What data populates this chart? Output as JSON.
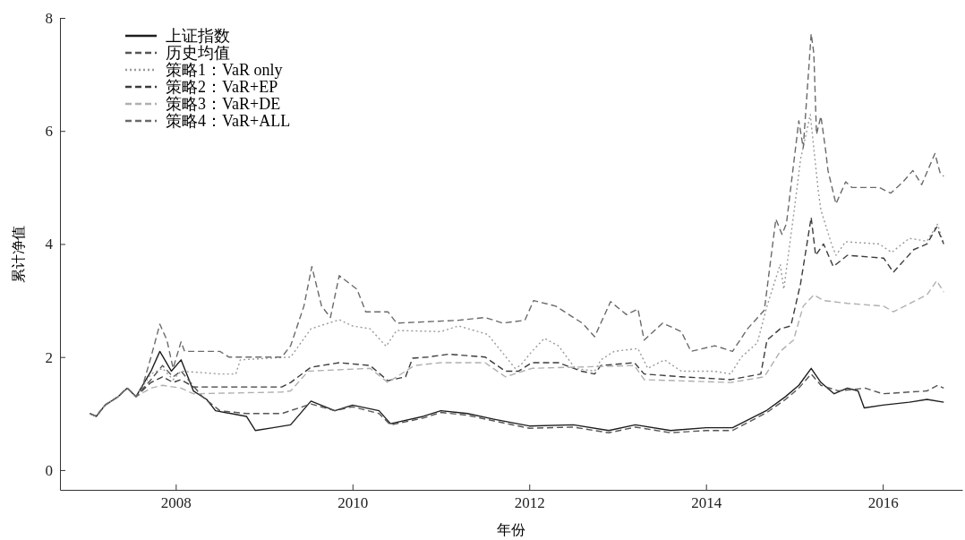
{
  "chart_data": {
    "type": "line",
    "xlabel": "年份",
    "ylabel": "累计净值",
    "xlim": [
      2006.69,
      2016.9
    ],
    "ylim": [
      -0.35,
      8
    ],
    "xticks": [
      2008,
      2010,
      2012,
      2014,
      2016
    ],
    "yticks": [
      0,
      2,
      4,
      6,
      8
    ],
    "grid": false,
    "legend": "top left",
    "series": [
      {
        "name": "上证指数",
        "color": "#1e1e1e",
        "line_style": "solid",
        "x": [
          2007.03,
          2007.1,
          2007.2,
          2007.35,
          2007.45,
          2007.55,
          2007.72,
          2007.82,
          2007.95,
          2008.06,
          2008.2,
          2008.35,
          2008.45,
          2008.8,
          2008.9,
          2009.1,
          2009.3,
          2009.53,
          2009.8,
          2010.0,
          2010.3,
          2010.43,
          2010.8,
          2011.0,
          2011.3,
          2011.6,
          2012.0,
          2012.5,
          2012.9,
          2013.2,
          2013.6,
          2014.0,
          2014.3,
          2014.69,
          2014.9,
          2015.05,
          2015.19,
          2015.3,
          2015.45,
          2015.6,
          2015.72,
          2015.79,
          2016.0,
          2016.3,
          2016.5,
          2016.69
        ],
        "values": [
          1.0,
          0.95,
          1.15,
          1.3,
          1.45,
          1.3,
          1.75,
          2.1,
          1.75,
          1.95,
          1.4,
          1.25,
          1.05,
          0.95,
          0.7,
          0.75,
          0.8,
          1.22,
          1.05,
          1.15,
          1.05,
          0.82,
          0.95,
          1.05,
          1.0,
          0.9,
          0.78,
          0.8,
          0.7,
          0.8,
          0.7,
          0.75,
          0.75,
          1.06,
          1.3,
          1.5,
          1.8,
          1.55,
          1.35,
          1.45,
          1.4,
          1.1,
          1.15,
          1.2,
          1.25,
          1.2
        ]
      },
      {
        "name": "历史均值",
        "color": "#555555",
        "line_style": "dashed",
        "x": [
          2007.03,
          2007.1,
          2007.2,
          2007.35,
          2007.45,
          2007.55,
          2007.72,
          2007.85,
          2007.97,
          2008.06,
          2008.3,
          2008.5,
          2008.8,
          2009.2,
          2009.53,
          2009.8,
          2010.0,
          2010.3,
          2010.43,
          2010.8,
          2011.0,
          2011.3,
          2011.6,
          2012.0,
          2012.5,
          2012.9,
          2013.2,
          2013.6,
          2014.0,
          2014.3,
          2014.69,
          2014.9,
          2015.05,
          2015.19,
          2015.3,
          2015.5,
          2015.8,
          2016.0,
          2016.5,
          2016.62,
          2016.69
        ],
        "values": [
          1.0,
          0.95,
          1.15,
          1.3,
          1.45,
          1.3,
          1.6,
          1.85,
          1.65,
          1.75,
          1.3,
          1.05,
          1.0,
          1.0,
          1.17,
          1.05,
          1.12,
          1.0,
          0.8,
          0.92,
          1.02,
          0.97,
          0.87,
          0.74,
          0.76,
          0.66,
          0.76,
          0.66,
          0.7,
          0.7,
          1.02,
          1.25,
          1.45,
          1.7,
          1.5,
          1.4,
          1.45,
          1.35,
          1.4,
          1.5,
          1.45
        ]
      },
      {
        "name": "策略1：VaR only",
        "color": "#9a9a9a",
        "line_style": "dotted",
        "x": [
          2007.03,
          2007.1,
          2007.2,
          2007.35,
          2007.45,
          2007.55,
          2007.72,
          2007.85,
          2007.97,
          2008.06,
          2008.5,
          2008.68,
          2008.73,
          2009.3,
          2009.53,
          2009.85,
          2010.0,
          2010.2,
          2010.38,
          2010.5,
          2011.0,
          2011.2,
          2011.53,
          2011.84,
          2011.9,
          2012.03,
          2012.17,
          2012.33,
          2012.52,
          2012.74,
          2012.81,
          2012.96,
          2013.23,
          2013.34,
          2013.53,
          2013.72,
          2014.09,
          2014.28,
          2014.4,
          2014.58,
          2014.69,
          2014.84,
          2014.88,
          2014.99,
          2015.07,
          2015.18,
          2015.27,
          2015.3,
          2015.42,
          2015.47,
          2015.58,
          2015.96,
          2016.1,
          2016.3,
          2016.5,
          2016.62,
          2016.69
        ],
        "values": [
          1.0,
          0.95,
          1.15,
          1.3,
          1.45,
          1.3,
          1.7,
          1.8,
          1.6,
          1.75,
          1.7,
          1.7,
          1.95,
          2.0,
          2.5,
          2.66,
          2.55,
          2.5,
          2.19,
          2.47,
          2.45,
          2.55,
          2.4,
          1.8,
          1.85,
          2.1,
          2.33,
          2.2,
          1.8,
          1.75,
          1.95,
          2.1,
          2.15,
          1.8,
          1.95,
          1.75,
          1.75,
          1.7,
          2.0,
          2.25,
          2.9,
          3.64,
          3.2,
          4.5,
          5.5,
          6.29,
          4.94,
          4.6,
          4.0,
          3.8,
          4.04,
          4.0,
          3.85,
          4.1,
          4.05,
          4.35,
          4.0
        ]
      },
      {
        "name": "策略2：VaR+EP",
        "color": "#3c3c3c",
        "line_style": "dashed",
        "x": [
          2007.03,
          2007.1,
          2007.2,
          2007.35,
          2007.45,
          2007.55,
          2007.72,
          2007.85,
          2007.97,
          2008.06,
          2008.2,
          2009.2,
          2009.3,
          2009.53,
          2009.85,
          2010.2,
          2010.4,
          2010.6,
          2010.68,
          2010.85,
          2011.09,
          2011.5,
          2011.73,
          2011.88,
          2012.03,
          2012.33,
          2012.59,
          2012.74,
          2012.81,
          2013.19,
          2013.3,
          2013.72,
          2014.28,
          2014.62,
          2014.69,
          2014.84,
          2014.96,
          2015.07,
          2015.19,
          2015.24,
          2015.33,
          2015.44,
          2015.6,
          2016.01,
          2016.12,
          2016.35,
          2016.5,
          2016.61,
          2016.69
        ],
        "values": [
          1.0,
          0.95,
          1.15,
          1.3,
          1.45,
          1.3,
          1.55,
          1.65,
          1.55,
          1.6,
          1.47,
          1.47,
          1.55,
          1.82,
          1.9,
          1.85,
          1.58,
          1.65,
          1.98,
          2.0,
          2.05,
          2.0,
          1.75,
          1.75,
          1.9,
          1.9,
          1.75,
          1.7,
          1.85,
          1.9,
          1.7,
          1.65,
          1.6,
          1.7,
          2.3,
          2.5,
          2.55,
          3.3,
          4.47,
          3.8,
          4.0,
          3.6,
          3.8,
          3.75,
          3.5,
          3.9,
          4.0,
          4.3,
          4.0
        ]
      },
      {
        "name": "策略3：VaR+DE",
        "color": "#b0b0b0",
        "line_style": "dashed",
        "x": [
          2007.03,
          2007.1,
          2007.2,
          2007.35,
          2007.45,
          2007.55,
          2007.72,
          2007.85,
          2008.06,
          2008.2,
          2009.2,
          2009.3,
          2009.5,
          2010.2,
          2010.4,
          2010.7,
          2011.0,
          2011.5,
          2011.73,
          2012.03,
          2013.19,
          2013.3,
          2014.28,
          2014.66,
          2014.84,
          2014.99,
          2015.1,
          2015.22,
          2015.33,
          2015.6,
          2016.01,
          2016.12,
          2016.5,
          2016.61,
          2016.69
        ],
        "values": [
          1.0,
          0.95,
          1.15,
          1.3,
          1.45,
          1.3,
          1.45,
          1.5,
          1.45,
          1.35,
          1.38,
          1.4,
          1.75,
          1.8,
          1.55,
          1.85,
          1.9,
          1.9,
          1.65,
          1.8,
          1.85,
          1.6,
          1.55,
          1.65,
          2.1,
          2.3,
          2.9,
          3.1,
          3.0,
          2.95,
          2.9,
          2.8,
          3.1,
          3.35,
          3.15
        ]
      },
      {
        "name": "策略4：VaR+ALL",
        "color": "#6a6a6a",
        "line_style": "dashed",
        "x": [
          2007.03,
          2007.1,
          2007.2,
          2007.35,
          2007.45,
          2007.55,
          2007.6,
          2007.72,
          2007.82,
          2007.9,
          2007.97,
          2008.06,
          2008.1,
          2008.5,
          2008.6,
          2009.2,
          2009.3,
          2009.45,
          2009.54,
          2009.65,
          2009.75,
          2009.85,
          2010.05,
          2010.15,
          2010.4,
          2010.5,
          2011.2,
          2011.5,
          2011.7,
          2011.95,
          2012.05,
          2012.3,
          2012.6,
          2012.74,
          2012.92,
          2013.1,
          2013.23,
          2013.3,
          2013.51,
          2013.72,
          2013.83,
          2014.1,
          2014.3,
          2014.47,
          2014.66,
          2014.79,
          2014.86,
          2014.91,
          2015.05,
          2015.1,
          2015.19,
          2015.22,
          2015.25,
          2015.3,
          2015.35,
          2015.38,
          2015.47,
          2015.58,
          2015.65,
          2015.96,
          2016.09,
          2016.23,
          2016.34,
          2016.44,
          2016.59,
          2016.65,
          2016.69
        ],
        "values": [
          1.0,
          0.95,
          1.15,
          1.3,
          1.45,
          1.3,
          1.35,
          2.0,
          2.58,
          2.3,
          1.8,
          2.27,
          2.1,
          2.1,
          2.0,
          2.0,
          2.2,
          2.9,
          3.6,
          2.9,
          2.7,
          3.44,
          3.2,
          2.8,
          2.8,
          2.6,
          2.65,
          2.7,
          2.6,
          2.65,
          3.0,
          2.9,
          2.6,
          2.36,
          2.98,
          2.75,
          2.85,
          2.3,
          2.6,
          2.45,
          2.1,
          2.2,
          2.1,
          2.5,
          2.83,
          4.44,
          4.17,
          4.36,
          6.18,
          5.7,
          7.72,
          7.37,
          5.94,
          6.26,
          5.7,
          5.3,
          4.71,
          5.1,
          5.0,
          5.0,
          4.9,
          5.1,
          5.3,
          5.05,
          5.6,
          5.25,
          5.2
        ]
      }
    ]
  }
}
